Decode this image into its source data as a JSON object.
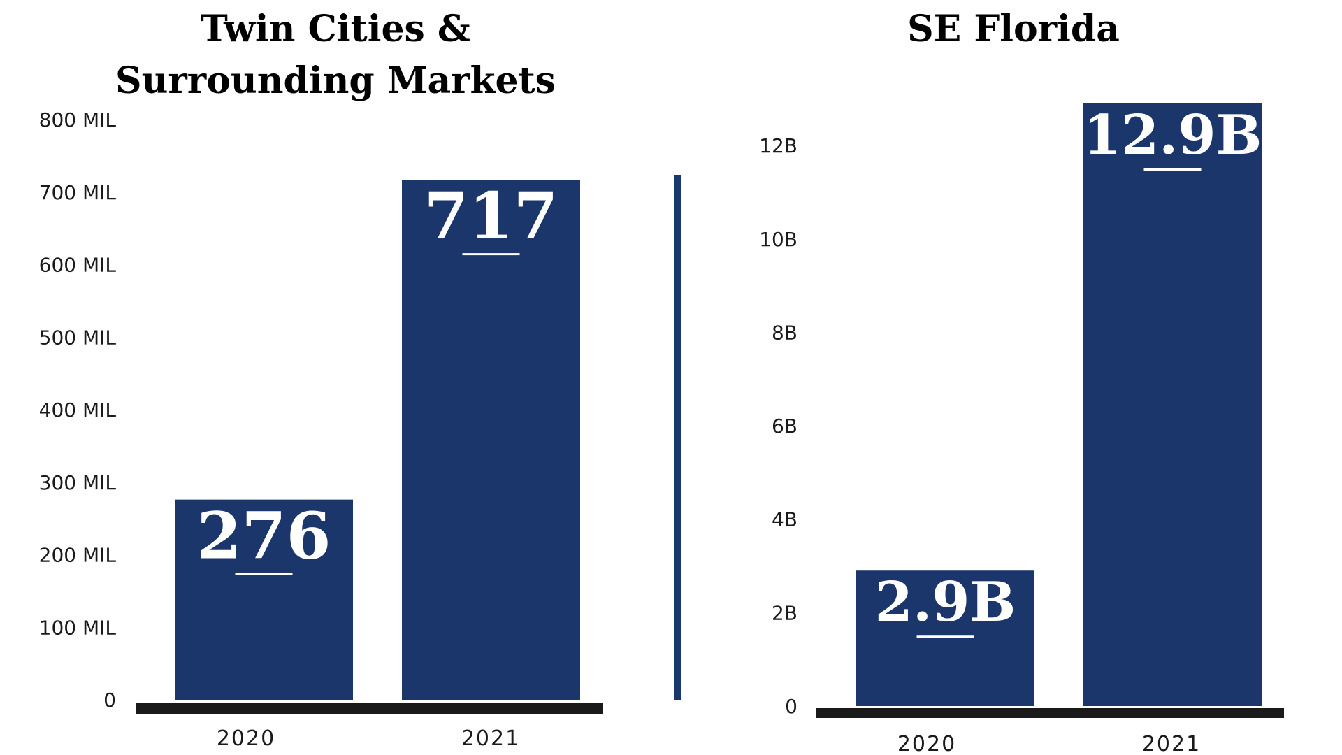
{
  "colors": {
    "bar": "#1b366b",
    "baseline": "#1a1a1a",
    "label_text": "#ffffff",
    "axis_text": "#1a1a1a",
    "title_text": "#000000",
    "divider": "#1b366b"
  },
  "chart_data": [
    {
      "type": "bar",
      "title_lines": [
        "Twin Cities &",
        "Surrounding Markets"
      ],
      "categories": [
        "2020",
        "2021"
      ],
      "values": [
        276,
        717
      ],
      "value_labels": [
        "276",
        "717"
      ],
      "unit": "MIL",
      "xlabel": "",
      "ylabel": "",
      "ylim": [
        0,
        800
      ],
      "yticks": [
        0,
        100,
        200,
        300,
        400,
        500,
        600,
        700,
        800
      ],
      "ytick_labels": [
        "0",
        "100 MIL",
        "200 MIL",
        "300 MIL",
        "400 MIL",
        "500 MIL",
        "600 MIL",
        "700 MIL",
        "800 MIL"
      ],
      "grid": false,
      "legend": "none"
    },
    {
      "type": "bar",
      "title_lines": [
        "SE Florida"
      ],
      "categories": [
        "2020",
        "2021"
      ],
      "values": [
        2.9,
        12.9
      ],
      "value_labels": [
        "2.9B",
        "12.9B"
      ],
      "unit": "B",
      "xlabel": "",
      "ylabel": "",
      "ylim": [
        0,
        12.9
      ],
      "yticks": [
        0,
        2,
        4,
        6,
        8,
        10,
        12
      ],
      "ytick_labels": [
        "0",
        "2B",
        "4B",
        "6B",
        "8B",
        "10B",
        "12B"
      ],
      "grid": false,
      "legend": "none"
    }
  ]
}
